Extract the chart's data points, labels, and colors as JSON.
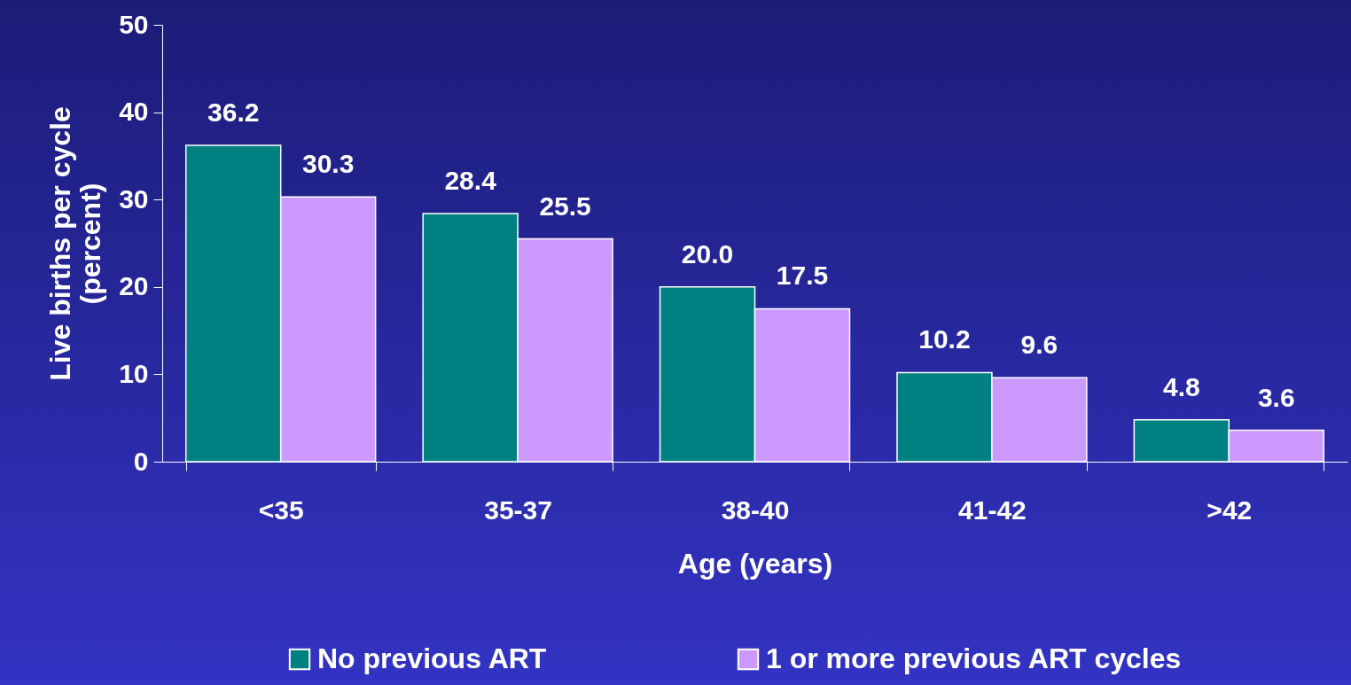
{
  "chart_data": {
    "type": "bar",
    "xlabel": "Age (years)",
    "ylabel": "Live births per cycle\n(percent)",
    "categories": [
      "<35",
      "35-37",
      "38-40",
      "41-42",
      ">42"
    ],
    "series": [
      {
        "name": "No previous ART",
        "color": "#008080",
        "values": [
          36.2,
          28.4,
          20.0,
          10.2,
          4.8
        ],
        "value_labels": [
          "36.2",
          "28.4",
          "20.0",
          "10.2",
          "4.8"
        ]
      },
      {
        "name": "1 or more previous ART cycles",
        "color": "#cc99ff",
        "values": [
          30.3,
          25.5,
          17.5,
          9.6,
          3.6
        ],
        "value_labels": [
          "30.3",
          "25.5",
          "17.5",
          "9.6",
          "3.6"
        ]
      }
    ],
    "ylim": [
      0,
      50
    ],
    "yticks": [
      0,
      10,
      20,
      30,
      40,
      50
    ],
    "grid": false,
    "legend": "bottom"
  }
}
